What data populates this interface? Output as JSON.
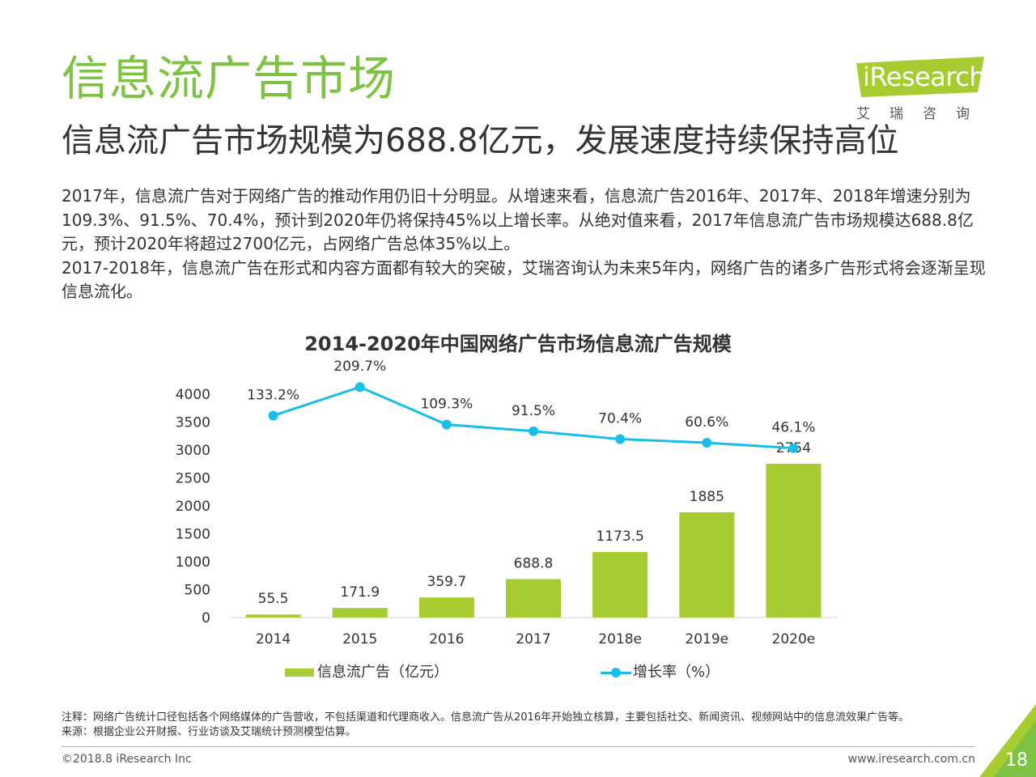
{
  "header": {
    "title": "信息流广告市场",
    "subtitle": "信息流广告市场规模为688.8亿元，发展速度持续保持高位"
  },
  "logo": {
    "brand": "iResearch",
    "brand_cn": "艾瑞咨询"
  },
  "body": {
    "paragraph1": "2017年，信息流广告对于网络广告的推动作用仍旧十分明显。从增速来看，信息流广告2016年、2017年、2018年增速分别为109.3%、91.5%、70.4%，预计到2020年仍将保持45%以上增长率。从绝对值来看，2017年信息流广告市场规模达688.8亿元，预计2020年将超过2700亿元，占网络广告总体35%以上。",
    "paragraph2": "2017-2018年，信息流广告在形式和内容方面都有较大的突破，艾瑞咨询认为未来5年内，网络广告的诸多广告形式将会逐渐呈现信息流化。"
  },
  "chart_data": {
    "type": "bar",
    "title": "2014-2020年中国网络广告市场信息流广告规模",
    "categories": [
      "2014",
      "2015",
      "2016",
      "2017",
      "2018e",
      "2019e",
      "2020e"
    ],
    "series": [
      {
        "name": "信息流广告（亿元）",
        "type": "bar",
        "values": [
          55.5,
          171.9,
          359.7,
          688.8,
          1173.5,
          1885,
          2754
        ],
        "labels": [
          "55.5",
          "171.9",
          "359.7",
          "688.8",
          "1173.5",
          "1885",
          "2754"
        ],
        "color": "#a7cc32"
      },
      {
        "name": "增长率（%）",
        "type": "line",
        "values": [
          133.2,
          209.7,
          109.3,
          91.5,
          70.4,
          60.6,
          46.1
        ],
        "labels": [
          "133.2%",
          "209.7%",
          "109.3%",
          "91.5%",
          "70.4%",
          "60.6%",
          "46.1%"
        ],
        "color": "#18bde8"
      }
    ],
    "yticks": [
      "0",
      "500",
      "1000",
      "1500",
      "2000",
      "2500",
      "3000",
      "3500",
      "4000"
    ],
    "ylim": [
      0,
      4000
    ],
    "legend_position": "bottom",
    "grid": false
  },
  "notes": {
    "note": "注释：网络广告统计口径包括各个网络媒体的广告营收，不包括渠道和代理商收入。信息流广告从2016年开始独立核算，主要包括社交、新闻资讯、视频网站中的信息流效果广告等。",
    "source": "来源：根据企业公开财报、行业访谈及艾瑞统计预测模型估算。"
  },
  "footer": {
    "copyright": "©2018.8 iResearch Inc",
    "url": "www.iresearch.com.cn",
    "page_number": "18"
  },
  "colors": {
    "accent_green": "#7dc242",
    "bar": "#a7cc32",
    "line": "#18bde8"
  }
}
